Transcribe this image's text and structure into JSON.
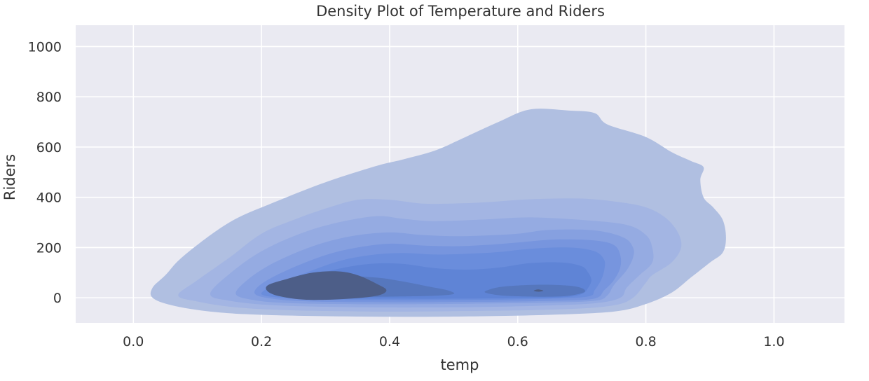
{
  "chart_data": {
    "type": "kde-density",
    "title": "Density Plot of Temperature and Riders",
    "xlabel": "temp",
    "ylabel": "Riders",
    "xlim": [
      -0.09,
      1.11
    ],
    "ylim": [
      -100,
      1085
    ],
    "xticks": [
      0.0,
      0.2,
      0.4,
      0.6,
      0.8,
      1.0
    ],
    "xtick_labels": [
      "0.0",
      "0.2",
      "0.4",
      "0.6",
      "0.8",
      "1.0"
    ],
    "yticks": [
      0,
      200,
      400,
      600,
      800,
      1000
    ],
    "ytick_labels": [
      "0",
      "200",
      "400",
      "600",
      "800",
      "1000"
    ],
    "grid": true,
    "levels": [
      {
        "level": 1,
        "color": "#b0bfe1",
        "outline": [
          [
            0.03,
            0
          ],
          [
            0.06,
            -30
          ],
          [
            0.12,
            -55
          ],
          [
            0.2,
            -68
          ],
          [
            0.35,
            -75
          ],
          [
            0.5,
            -75
          ],
          [
            0.65,
            -68
          ],
          [
            0.75,
            -55
          ],
          [
            0.8,
            -25
          ],
          [
            0.84,
            20
          ],
          [
            0.87,
            80
          ],
          [
            0.9,
            140
          ],
          [
            0.92,
            180
          ],
          [
            0.925,
            240
          ],
          [
            0.92,
            310
          ],
          [
            0.905,
            360
          ],
          [
            0.89,
            400
          ],
          [
            0.885,
            470
          ],
          [
            0.89,
            520
          ],
          [
            0.87,
            545
          ],
          [
            0.84,
            580
          ],
          [
            0.8,
            640
          ],
          [
            0.74,
            690
          ],
          [
            0.72,
            735
          ],
          [
            0.68,
            745
          ],
          [
            0.62,
            750
          ],
          [
            0.57,
            700
          ],
          [
            0.51,
            630
          ],
          [
            0.47,
            585
          ],
          [
            0.42,
            550
          ],
          [
            0.38,
            525
          ],
          [
            0.3,
            460
          ],
          [
            0.22,
            380
          ],
          [
            0.15,
            300
          ],
          [
            0.08,
            170
          ],
          [
            0.05,
            90
          ],
          [
            0.03,
            40
          ]
        ]
      },
      {
        "level": 2,
        "color": "#a3b5e3",
        "outline": [
          [
            0.07,
            10
          ],
          [
            0.1,
            -15
          ],
          [
            0.16,
            -38
          ],
          [
            0.25,
            -50
          ],
          [
            0.4,
            -55
          ],
          [
            0.55,
            -52
          ],
          [
            0.68,
            -45
          ],
          [
            0.75,
            -30
          ],
          [
            0.78,
            0
          ],
          [
            0.8,
            60
          ],
          [
            0.81,
            90
          ],
          [
            0.84,
            140
          ],
          [
            0.855,
            200
          ],
          [
            0.85,
            260
          ],
          [
            0.83,
            320
          ],
          [
            0.8,
            360
          ],
          [
            0.76,
            380
          ],
          [
            0.7,
            395
          ],
          [
            0.62,
            392
          ],
          [
            0.55,
            380
          ],
          [
            0.5,
            375
          ],
          [
            0.45,
            375
          ],
          [
            0.4,
            390
          ],
          [
            0.35,
            390
          ],
          [
            0.3,
            355
          ],
          [
            0.25,
            310
          ],
          [
            0.2,
            255
          ],
          [
            0.15,
            160
          ],
          [
            0.1,
            70
          ]
        ]
      },
      {
        "level": 3,
        "color": "#95abe2",
        "outline": [
          [
            0.12,
            15
          ],
          [
            0.15,
            -12
          ],
          [
            0.22,
            -30
          ],
          [
            0.35,
            -38
          ],
          [
            0.5,
            -38
          ],
          [
            0.63,
            -32
          ],
          [
            0.72,
            -22
          ],
          [
            0.76,
            0
          ],
          [
            0.77,
            40
          ],
          [
            0.79,
            90
          ],
          [
            0.81,
            140
          ],
          [
            0.81,
            200
          ],
          [
            0.8,
            250
          ],
          [
            0.77,
            290
          ],
          [
            0.7,
            310
          ],
          [
            0.62,
            320
          ],
          [
            0.55,
            312
          ],
          [
            0.47,
            305
          ],
          [
            0.42,
            315
          ],
          [
            0.38,
            325
          ],
          [
            0.32,
            300
          ],
          [
            0.26,
            255
          ],
          [
            0.2,
            185
          ],
          [
            0.15,
            95
          ]
        ]
      },
      {
        "level": 4,
        "color": "#86a0e0",
        "outline": [
          [
            0.16,
            15
          ],
          [
            0.19,
            -10
          ],
          [
            0.25,
            -22
          ],
          [
            0.38,
            -26
          ],
          [
            0.52,
            -24
          ],
          [
            0.64,
            -20
          ],
          [
            0.72,
            -12
          ],
          [
            0.74,
            10
          ],
          [
            0.75,
            50
          ],
          [
            0.77,
            110
          ],
          [
            0.78,
            160
          ],
          [
            0.78,
            200
          ],
          [
            0.765,
            240
          ],
          [
            0.72,
            268
          ],
          [
            0.65,
            270
          ],
          [
            0.6,
            255
          ],
          [
            0.55,
            248
          ],
          [
            0.5,
            245
          ],
          [
            0.45,
            250
          ],
          [
            0.4,
            260
          ],
          [
            0.34,
            245
          ],
          [
            0.28,
            205
          ],
          [
            0.22,
            140
          ],
          [
            0.18,
            75
          ]
        ]
      },
      {
        "level": 5,
        "color": "#7795de",
        "outline": [
          [
            0.19,
            15
          ],
          [
            0.22,
            -5
          ],
          [
            0.28,
            -15
          ],
          [
            0.4,
            -18
          ],
          [
            0.55,
            -16
          ],
          [
            0.66,
            -12
          ],
          [
            0.72,
            -3
          ],
          [
            0.735,
            30
          ],
          [
            0.75,
            70
          ],
          [
            0.76,
            120
          ],
          [
            0.76,
            170
          ],
          [
            0.75,
            210
          ],
          [
            0.72,
            228
          ],
          [
            0.66,
            232
          ],
          [
            0.6,
            220
          ],
          [
            0.55,
            210
          ],
          [
            0.5,
            205
          ],
          [
            0.45,
            208
          ],
          [
            0.4,
            215
          ],
          [
            0.35,
            200
          ],
          [
            0.3,
            170
          ],
          [
            0.24,
            110
          ],
          [
            0.2,
            55
          ]
        ]
      },
      {
        "level": 6,
        "color": "#6a8ddc",
        "outline": [
          [
            0.2,
            15
          ],
          [
            0.23,
            0
          ],
          [
            0.3,
            -8
          ],
          [
            0.42,
            -10
          ],
          [
            0.55,
            -8
          ],
          [
            0.65,
            -4
          ],
          [
            0.71,
            5
          ],
          [
            0.72,
            30
          ],
          [
            0.73,
            70
          ],
          [
            0.735,
            110
          ],
          [
            0.735,
            150
          ],
          [
            0.72,
            185
          ],
          [
            0.68,
            200
          ],
          [
            0.62,
            195
          ],
          [
            0.57,
            182
          ],
          [
            0.52,
            175
          ],
          [
            0.47,
            172
          ],
          [
            0.42,
            178
          ],
          [
            0.37,
            170
          ],
          [
            0.32,
            145
          ],
          [
            0.27,
            100
          ],
          [
            0.22,
            50
          ]
        ]
      },
      {
        "level": 7,
        "color": "#5f84d6",
        "outline": [
          [
            0.22,
            15
          ],
          [
            0.25,
            2
          ],
          [
            0.32,
            -3
          ],
          [
            0.45,
            -4
          ],
          [
            0.58,
            -2
          ],
          [
            0.67,
            2
          ],
          [
            0.7,
            15
          ],
          [
            0.71,
            40
          ],
          [
            0.715,
            70
          ],
          [
            0.71,
            100
          ],
          [
            0.7,
            125
          ],
          [
            0.67,
            140
          ],
          [
            0.62,
            138
          ],
          [
            0.57,
            120
          ],
          [
            0.52,
            112
          ],
          [
            0.47,
            118
          ],
          [
            0.42,
            135
          ],
          [
            0.37,
            135
          ],
          [
            0.32,
            115
          ],
          [
            0.27,
            80
          ],
          [
            0.23,
            40
          ]
        ]
      },
      {
        "level": 8,
        "color": "#5677bd",
        "outline": [
          [
            0.23,
            20
          ],
          [
            0.27,
            8
          ],
          [
            0.33,
            3
          ],
          [
            0.42,
            5
          ],
          [
            0.47,
            8
          ],
          [
            0.5,
            15
          ],
          [
            0.49,
            30
          ],
          [
            0.46,
            45
          ],
          [
            0.42,
            65
          ],
          [
            0.38,
            80
          ],
          [
            0.33,
            85
          ],
          [
            0.28,
            72
          ],
          [
            0.24,
            45
          ]
        ]
      },
      {
        "level": 8,
        "color": "#5677bd",
        "outline": [
          [
            0.55,
            20
          ],
          [
            0.58,
            8
          ],
          [
            0.64,
            4
          ],
          [
            0.68,
            8
          ],
          [
            0.705,
            25
          ],
          [
            0.69,
            45
          ],
          [
            0.64,
            52
          ],
          [
            0.58,
            45
          ],
          [
            0.555,
            32
          ]
        ]
      },
      {
        "level": 9,
        "color": "#4d5e88",
        "outline": [
          [
            0.21,
            25
          ],
          [
            0.23,
            5
          ],
          [
            0.27,
            -8
          ],
          [
            0.33,
            -5
          ],
          [
            0.38,
            8
          ],
          [
            0.395,
            30
          ],
          [
            0.38,
            55
          ],
          [
            0.35,
            90
          ],
          [
            0.32,
            105
          ],
          [
            0.28,
            100
          ],
          [
            0.24,
            75
          ],
          [
            0.21,
            50
          ]
        ]
      },
      {
        "level": 9,
        "color": "#4d5e88",
        "outline": [
          [
            0.625,
            28
          ],
          [
            0.632,
            24
          ],
          [
            0.64,
            28
          ],
          [
            0.632,
            33
          ]
        ]
      }
    ]
  }
}
